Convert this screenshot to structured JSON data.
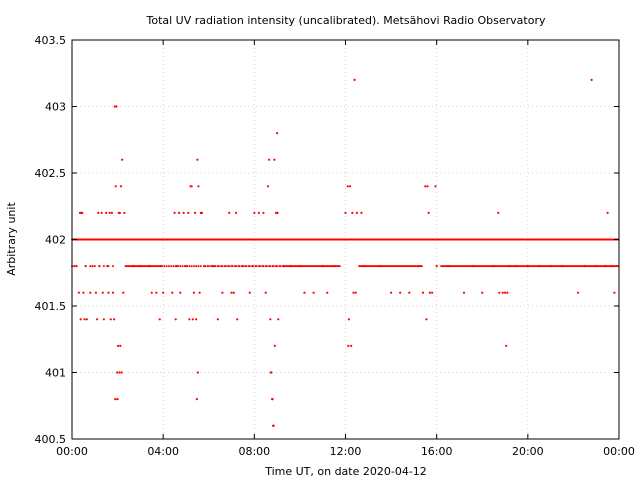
{
  "chart_data": {
    "type": "scatter",
    "title": "Total UV radiation intensity (uncalibrated). Metsähovi Radio Observatory",
    "xlabel": "Time UT, on date 2020-04-12",
    "ylabel": "Arbitrary unit",
    "x_range_hours": [
      0,
      24
    ],
    "ylim": [
      400.5,
      403.5
    ],
    "x_ticks": [
      "00:00",
      "04:00",
      "08:00",
      "12:00",
      "16:00",
      "20:00",
      "00:00"
    ],
    "y_ticks": [
      "400.5",
      "401",
      "401.5",
      "402",
      "402.5",
      "403",
      "403.5"
    ],
    "grid": true,
    "marker_color": "#ff0000",
    "series": [
      {
        "points": [
          [
            0.05,
            402
          ],
          [
            0.1,
            401.8
          ],
          [
            0.15,
            402
          ],
          [
            0.2,
            401.8
          ],
          [
            0.25,
            402
          ],
          [
            0.3,
            401.6
          ],
          [
            0.35,
            402.2
          ],
          [
            0.38,
            401.4
          ],
          [
            0.4,
            402.2
          ],
          [
            0.45,
            402.2
          ],
          [
            0.5,
            401.6
          ],
          [
            0.55,
            401.4
          ],
          [
            0.6,
            401.8
          ],
          [
            0.65,
            401.4
          ],
          [
            0.7,
            402
          ],
          [
            0.8,
            401.6
          ],
          [
            0.9,
            401.8
          ],
          [
            1.0,
            402
          ],
          [
            1.05,
            401.6
          ],
          [
            1.1,
            401.4
          ],
          [
            1.15,
            402.2
          ],
          [
            1.2,
            401.8
          ],
          [
            1.3,
            402.2
          ],
          [
            1.35,
            401.6
          ],
          [
            1.4,
            401.4
          ],
          [
            1.5,
            402.2
          ],
          [
            1.55,
            401.8
          ],
          [
            1.6,
            401.6
          ],
          [
            1.65,
            402.2
          ],
          [
            1.7,
            401.4
          ],
          [
            1.75,
            402.2
          ],
          [
            1.8,
            401.6
          ],
          [
            1.85,
            401.4
          ],
          [
            1.88,
            403
          ],
          [
            1.9,
            400.8
          ],
          [
            1.92,
            402.4
          ],
          [
            1.95,
            403
          ],
          [
            1.98,
            401
          ],
          [
            2.0,
            400.8
          ],
          [
            2.02,
            401.2
          ],
          [
            2.05,
            402.2
          ],
          [
            2.08,
            401
          ],
          [
            2.1,
            402.2
          ],
          [
            2.12,
            401.2
          ],
          [
            2.15,
            402.4
          ],
          [
            2.18,
            401
          ],
          [
            2.2,
            402.6
          ],
          [
            2.25,
            401.6
          ],
          [
            2.3,
            402.2
          ],
          [
            2.35,
            402
          ],
          [
            2.5,
            402
          ],
          [
            2.7,
            401.8
          ],
          [
            3.0,
            401.8
          ],
          [
            3.2,
            402
          ],
          [
            3.4,
            401.8
          ],
          [
            3.5,
            401.6
          ],
          [
            3.7,
            401.6
          ],
          [
            3.85,
            401.4
          ],
          [
            3.9,
            401.8
          ],
          [
            4.0,
            401.6
          ],
          [
            4.2,
            402
          ],
          [
            4.4,
            401.6
          ],
          [
            4.5,
            402.2
          ],
          [
            4.55,
            401.4
          ],
          [
            4.6,
            401.8
          ],
          [
            4.7,
            402.2
          ],
          [
            4.75,
            401.6
          ],
          [
            4.9,
            402.2
          ],
          [
            5.0,
            401.8
          ],
          [
            5.1,
            402.2
          ],
          [
            5.15,
            401.4
          ],
          [
            5.2,
            402.4
          ],
          [
            5.25,
            402.4
          ],
          [
            5.3,
            401.4
          ],
          [
            5.35,
            401.6
          ],
          [
            5.4,
            402.2
          ],
          [
            5.45,
            401.4
          ],
          [
            5.48,
            400.8
          ],
          [
            5.5,
            402.6
          ],
          [
            5.52,
            401
          ],
          [
            5.55,
            402.4
          ],
          [
            5.6,
            401.6
          ],
          [
            5.65,
            402.2
          ],
          [
            5.7,
            402.2
          ],
          [
            5.8,
            401.8
          ],
          [
            6.2,
            401.8
          ],
          [
            6.4,
            401.4
          ],
          [
            6.6,
            401.6
          ],
          [
            6.9,
            402.2
          ],
          [
            7.0,
            401.6
          ],
          [
            7.1,
            401.6
          ],
          [
            7.2,
            402.2
          ],
          [
            7.25,
            401.4
          ],
          [
            7.5,
            401.8
          ],
          [
            7.8,
            401.6
          ],
          [
            8.0,
            402.2
          ],
          [
            8.2,
            402.2
          ],
          [
            8.4,
            402.2
          ],
          [
            8.5,
            401.6
          ],
          [
            8.6,
            402.4
          ],
          [
            8.65,
            402.6
          ],
          [
            8.7,
            401.4
          ],
          [
            8.72,
            401
          ],
          [
            8.75,
            401
          ],
          [
            8.78,
            400.8
          ],
          [
            8.8,
            400.8
          ],
          [
            8.82,
            400.6
          ],
          [
            8.85,
            400.6
          ],
          [
            8.88,
            402.6
          ],
          [
            8.9,
            401.2
          ],
          [
            8.95,
            402.2
          ],
          [
            9.0,
            402.8
          ],
          [
            9.02,
            402.2
          ],
          [
            9.05,
            401.4
          ],
          [
            9.1,
            402
          ],
          [
            9.3,
            401.8
          ],
          [
            9.6,
            401.8
          ],
          [
            10.0,
            401.8
          ],
          [
            10.2,
            401.6
          ],
          [
            10.6,
            401.6
          ],
          [
            11.0,
            401.8
          ],
          [
            11.2,
            401.6
          ],
          [
            11.5,
            401.8
          ],
          [
            12.0,
            402.2
          ],
          [
            12.1,
            402.4
          ],
          [
            12.12,
            401.2
          ],
          [
            12.15,
            401.4
          ],
          [
            12.2,
            402.4
          ],
          [
            12.25,
            401.2
          ],
          [
            12.3,
            402.2
          ],
          [
            12.35,
            401.6
          ],
          [
            12.4,
            403.2
          ],
          [
            12.45,
            401.6
          ],
          [
            12.5,
            402.2
          ],
          [
            12.7,
            402.2
          ],
          [
            12.8,
            401.8
          ],
          [
            13.5,
            401.8
          ],
          [
            14.0,
            401.6
          ],
          [
            14.4,
            401.6
          ],
          [
            14.8,
            401.6
          ],
          [
            15.2,
            401.8
          ],
          [
            15.4,
            401.6
          ],
          [
            15.5,
            402.4
          ],
          [
            15.55,
            401.4
          ],
          [
            15.6,
            402.4
          ],
          [
            15.65,
            402.2
          ],
          [
            15.7,
            401.6
          ],
          [
            15.8,
            401.6
          ],
          [
            15.95,
            402.4
          ],
          [
            16.0,
            401.8
          ],
          [
            16.5,
            401.8
          ],
          [
            17.0,
            402
          ],
          [
            17.2,
            401.6
          ],
          [
            17.6,
            401.8
          ],
          [
            18.0,
            401.6
          ],
          [
            18.5,
            401.8
          ],
          [
            18.7,
            402.2
          ],
          [
            18.75,
            401.6
          ],
          [
            18.9,
            401.6
          ],
          [
            19.0,
            401.6
          ],
          [
            19.05,
            401.2
          ],
          [
            19.1,
            401.6
          ],
          [
            19.2,
            401.8
          ],
          [
            19.5,
            401.8
          ],
          [
            20.0,
            401.8
          ],
          [
            20.5,
            401.8
          ],
          [
            21.0,
            401.8
          ],
          [
            21.5,
            401.8
          ],
          [
            22.2,
            401.6
          ],
          [
            22.5,
            401.8
          ],
          [
            22.8,
            403.2
          ],
          [
            23.0,
            401.8
          ],
          [
            23.4,
            401.8
          ],
          [
            23.5,
            402.2
          ],
          [
            23.7,
            401.8
          ],
          [
            23.8,
            401.6
          ]
        ]
      }
    ]
  }
}
